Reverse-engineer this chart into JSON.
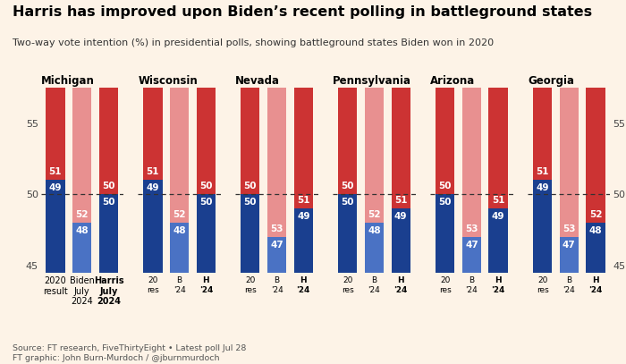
{
  "title": "Harris has improved upon Biden’s recent polling in battleground states",
  "subtitle": "Two-way vote intention (%) in presidential polls, showing battleground states Biden won in 2020",
  "source": "Source: FT research, FiveThirtyEight • Latest poll Jul 28\nFT graphic: John Burn-Murdoch / @jburnmurdoch\n© FT",
  "states": [
    "Michigan",
    "Wisconsin",
    "Nevada",
    "Pennsylvania",
    "Arizona",
    "Georgia"
  ],
  "xlabels_michigan": [
    "2020\nresult",
    "Biden\nJuly\n2024",
    "Harris\nJuly\n2024"
  ],
  "xlabels_other": [
    "20\nres",
    "B\n'24",
    "H\n'24"
  ],
  "biden_blue": [
    51,
    51,
    50,
    50,
    50,
    51
  ],
  "biden_july_blue": [
    48,
    48,
    47,
    48,
    47,
    47
  ],
  "harris_blue": [
    50,
    50,
    49,
    49,
    49,
    48
  ],
  "ylim_low": 44.5,
  "ylim_high": 57.5,
  "yticks": [
    45,
    50,
    55
  ],
  "color_blue_dark": "#1a3f8f",
  "color_blue_mid": "#4a72c4",
  "color_red_dark": "#cc3333",
  "color_red_light": "#e89090",
  "bg_color": "#fdf3e7",
  "bar_width": 0.72
}
